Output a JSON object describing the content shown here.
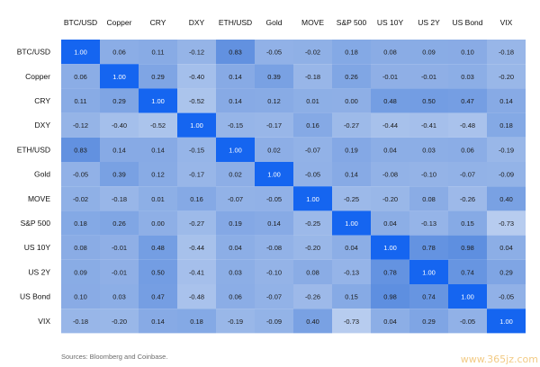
{
  "chart_data": {
    "type": "heatmap",
    "title": "",
    "columns": [
      "BTC/USD",
      "Copper",
      "CRY",
      "DXY",
      "ETH/USD",
      "Gold",
      "MOVE",
      "S&P 500",
      "US 10Y",
      "US 2Y",
      "US Bond",
      "VIX"
    ],
    "rows": [
      "BTC/USD",
      "Copper",
      "CRY",
      "DXY",
      "ETH/USD",
      "Gold",
      "MOVE",
      "S&P 500",
      "US 10Y",
      "US 2Y",
      "US Bond",
      "VIX"
    ],
    "values": [
      [
        "1.00",
        "0.06",
        "0.11",
        "-0.12",
        "0.83",
        "-0.05",
        "-0.02",
        "0.18",
        "0.08",
        "0.09",
        "0.10",
        "-0.18"
      ],
      [
        "0.06",
        "1.00",
        "0.29",
        "-0.40",
        "0.14",
        "0.39",
        "-0.18",
        "0.26",
        "-0.01",
        "-0.01",
        "0.03",
        "-0.20"
      ],
      [
        "0.11",
        "0.29",
        "1.00",
        "-0.52",
        "0.14",
        "0.12",
        "0.01",
        "0.00",
        "0.48",
        "0.50",
        "0.47",
        "0.14"
      ],
      [
        "-0.12",
        "-0.40",
        "-0.52",
        "1.00",
        "-0.15",
        "-0.17",
        "0.16",
        "-0.27",
        "-0.44",
        "-0.41",
        "-0.48",
        "0.18"
      ],
      [
        "0.83",
        "0.14",
        "0.14",
        "-0.15",
        "1.00",
        "0.02",
        "-0.07",
        "0.19",
        "0.04",
        "0.03",
        "0.06",
        "-0.19"
      ],
      [
        "-0.05",
        "0.39",
        "0.12",
        "-0.17",
        "0.02",
        "1.00",
        "-0.05",
        "0.14",
        "-0.08",
        "-0.10",
        "-0.07",
        "-0.09"
      ],
      [
        "-0.02",
        "-0.18",
        "0.01",
        "0.16",
        "-0.07",
        "-0.05",
        "1.00",
        "-0.25",
        "-0.20",
        "0.08",
        "-0.26",
        "0.40"
      ],
      [
        "0.18",
        "0.26",
        "0.00",
        "-0.27",
        "0.19",
        "0.14",
        "-0.25",
        "1.00",
        "0.04",
        "-0.13",
        "0.15",
        "-0.73"
      ],
      [
        "0.08",
        "-0.01",
        "0.48",
        "-0.44",
        "0.04",
        "-0.08",
        "-0.20",
        "0.04",
        "1.00",
        "0.78",
        "0.98",
        "0.04"
      ],
      [
        "0.09",
        "-0.01",
        "0.50",
        "-0.41",
        "0.03",
        "-0.10",
        "0.08",
        "-0.13",
        "0.78",
        "1.00",
        "0.74",
        "0.29"
      ],
      [
        "0.10",
        "0.03",
        "0.47",
        "-0.48",
        "0.06",
        "-0.07",
        "-0.26",
        "0.15",
        "0.98",
        "0.74",
        "1.00",
        "-0.05"
      ],
      [
        "-0.18",
        "-0.20",
        "0.14",
        "0.18",
        "-0.19",
        "-0.09",
        "0.40",
        "-0.73",
        "0.04",
        "0.29",
        "-0.05",
        "1.00"
      ]
    ],
    "colors": {
      "diagonal": "#1565f0",
      "negative_strong": "#b8cdef",
      "neutral": "#8eafe6",
      "positive_strong": "#5e8fe0",
      "diagonal_text": "#ffffff",
      "cell_text": "#1a1a1a"
    },
    "grid": false,
    "legend": "none"
  },
  "source_note": "Sources: Bloomberg and Coinbase.",
  "watermark": "www.365jz.com"
}
